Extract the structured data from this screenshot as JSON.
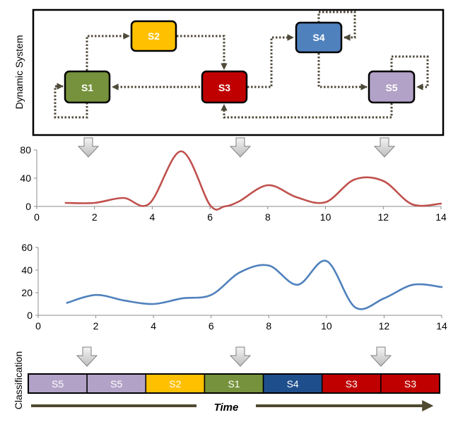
{
  "system": {
    "label": "Dynamic System",
    "states": [
      {
        "id": "S1",
        "label": "S1",
        "color": "#76923C"
      },
      {
        "id": "S2",
        "label": "S2",
        "color": "#FFC000"
      },
      {
        "id": "S3",
        "label": "S3",
        "color": "#C00000"
      },
      {
        "id": "S4",
        "label": "S4",
        "color": "#4F81BD"
      },
      {
        "id": "S5",
        "label": "S5",
        "color": "#B3A2C7"
      }
    ],
    "transitions": [
      {
        "from": "S1",
        "to": "S1"
      },
      {
        "from": "S1",
        "to": "S2"
      },
      {
        "from": "S2",
        "to": "S3"
      },
      {
        "from": "S3",
        "to": "S1"
      },
      {
        "from": "S3",
        "to": "S4"
      },
      {
        "from": "S4",
        "to": "S4"
      },
      {
        "from": "S4",
        "to": "S5"
      },
      {
        "from": "S5",
        "to": "S5"
      },
      {
        "from": "S5",
        "to": "S3"
      }
    ],
    "connector_color": "#4F4A3A"
  },
  "chart_data": [
    {
      "type": "line",
      "title": "",
      "xlabel": "",
      "ylabel": "",
      "xlim": [
        0,
        14
      ],
      "ylim": [
        0,
        80
      ],
      "x_ticks": [
        0,
        2,
        4,
        6,
        8,
        10,
        12,
        14
      ],
      "y_ticks": [
        0,
        40,
        80
      ],
      "grid": false,
      "series": [
        {
          "color": "#C0504D",
          "x": [
            1,
            2,
            3,
            3.9,
            5,
            6,
            6.5,
            7,
            8,
            9,
            10,
            11,
            12,
            13,
            14
          ],
          "y": [
            5,
            5,
            12,
            4,
            78,
            2,
            0,
            7,
            30,
            13,
            6,
            38,
            36,
            3,
            4
          ]
        }
      ]
    },
    {
      "type": "line",
      "title": "",
      "xlabel": "",
      "ylabel": "",
      "xlim": [
        0,
        14
      ],
      "ylim": [
        0,
        60
      ],
      "x_ticks": [
        0,
        2,
        4,
        6,
        8,
        10,
        12,
        14
      ],
      "y_ticks": [
        0,
        20,
        40,
        60
      ],
      "grid": false,
      "series": [
        {
          "color": "#4F81BD",
          "x": [
            1,
            2,
            3,
            4,
            5,
            6,
            7,
            8,
            9,
            10,
            11,
            12,
            13,
            14
          ],
          "y": [
            11,
            18,
            13,
            10,
            15,
            18,
            38,
            44,
            27,
            48,
            7,
            15,
            27,
            25
          ]
        }
      ]
    }
  ],
  "classification": {
    "label": "Classification",
    "time_label": "Time",
    "segments": [
      {
        "label": "S5",
        "color": "#B3A2C7"
      },
      {
        "label": "S5",
        "color": "#B3A2C7"
      },
      {
        "label": "S2",
        "color": "#FFC000"
      },
      {
        "label": "S1",
        "color": "#76923C"
      },
      {
        "label": "S4",
        "color": "#1F4E8C"
      },
      {
        "label": "S3",
        "color": "#C00000"
      },
      {
        "label": "S3",
        "color": "#C00000"
      }
    ]
  }
}
